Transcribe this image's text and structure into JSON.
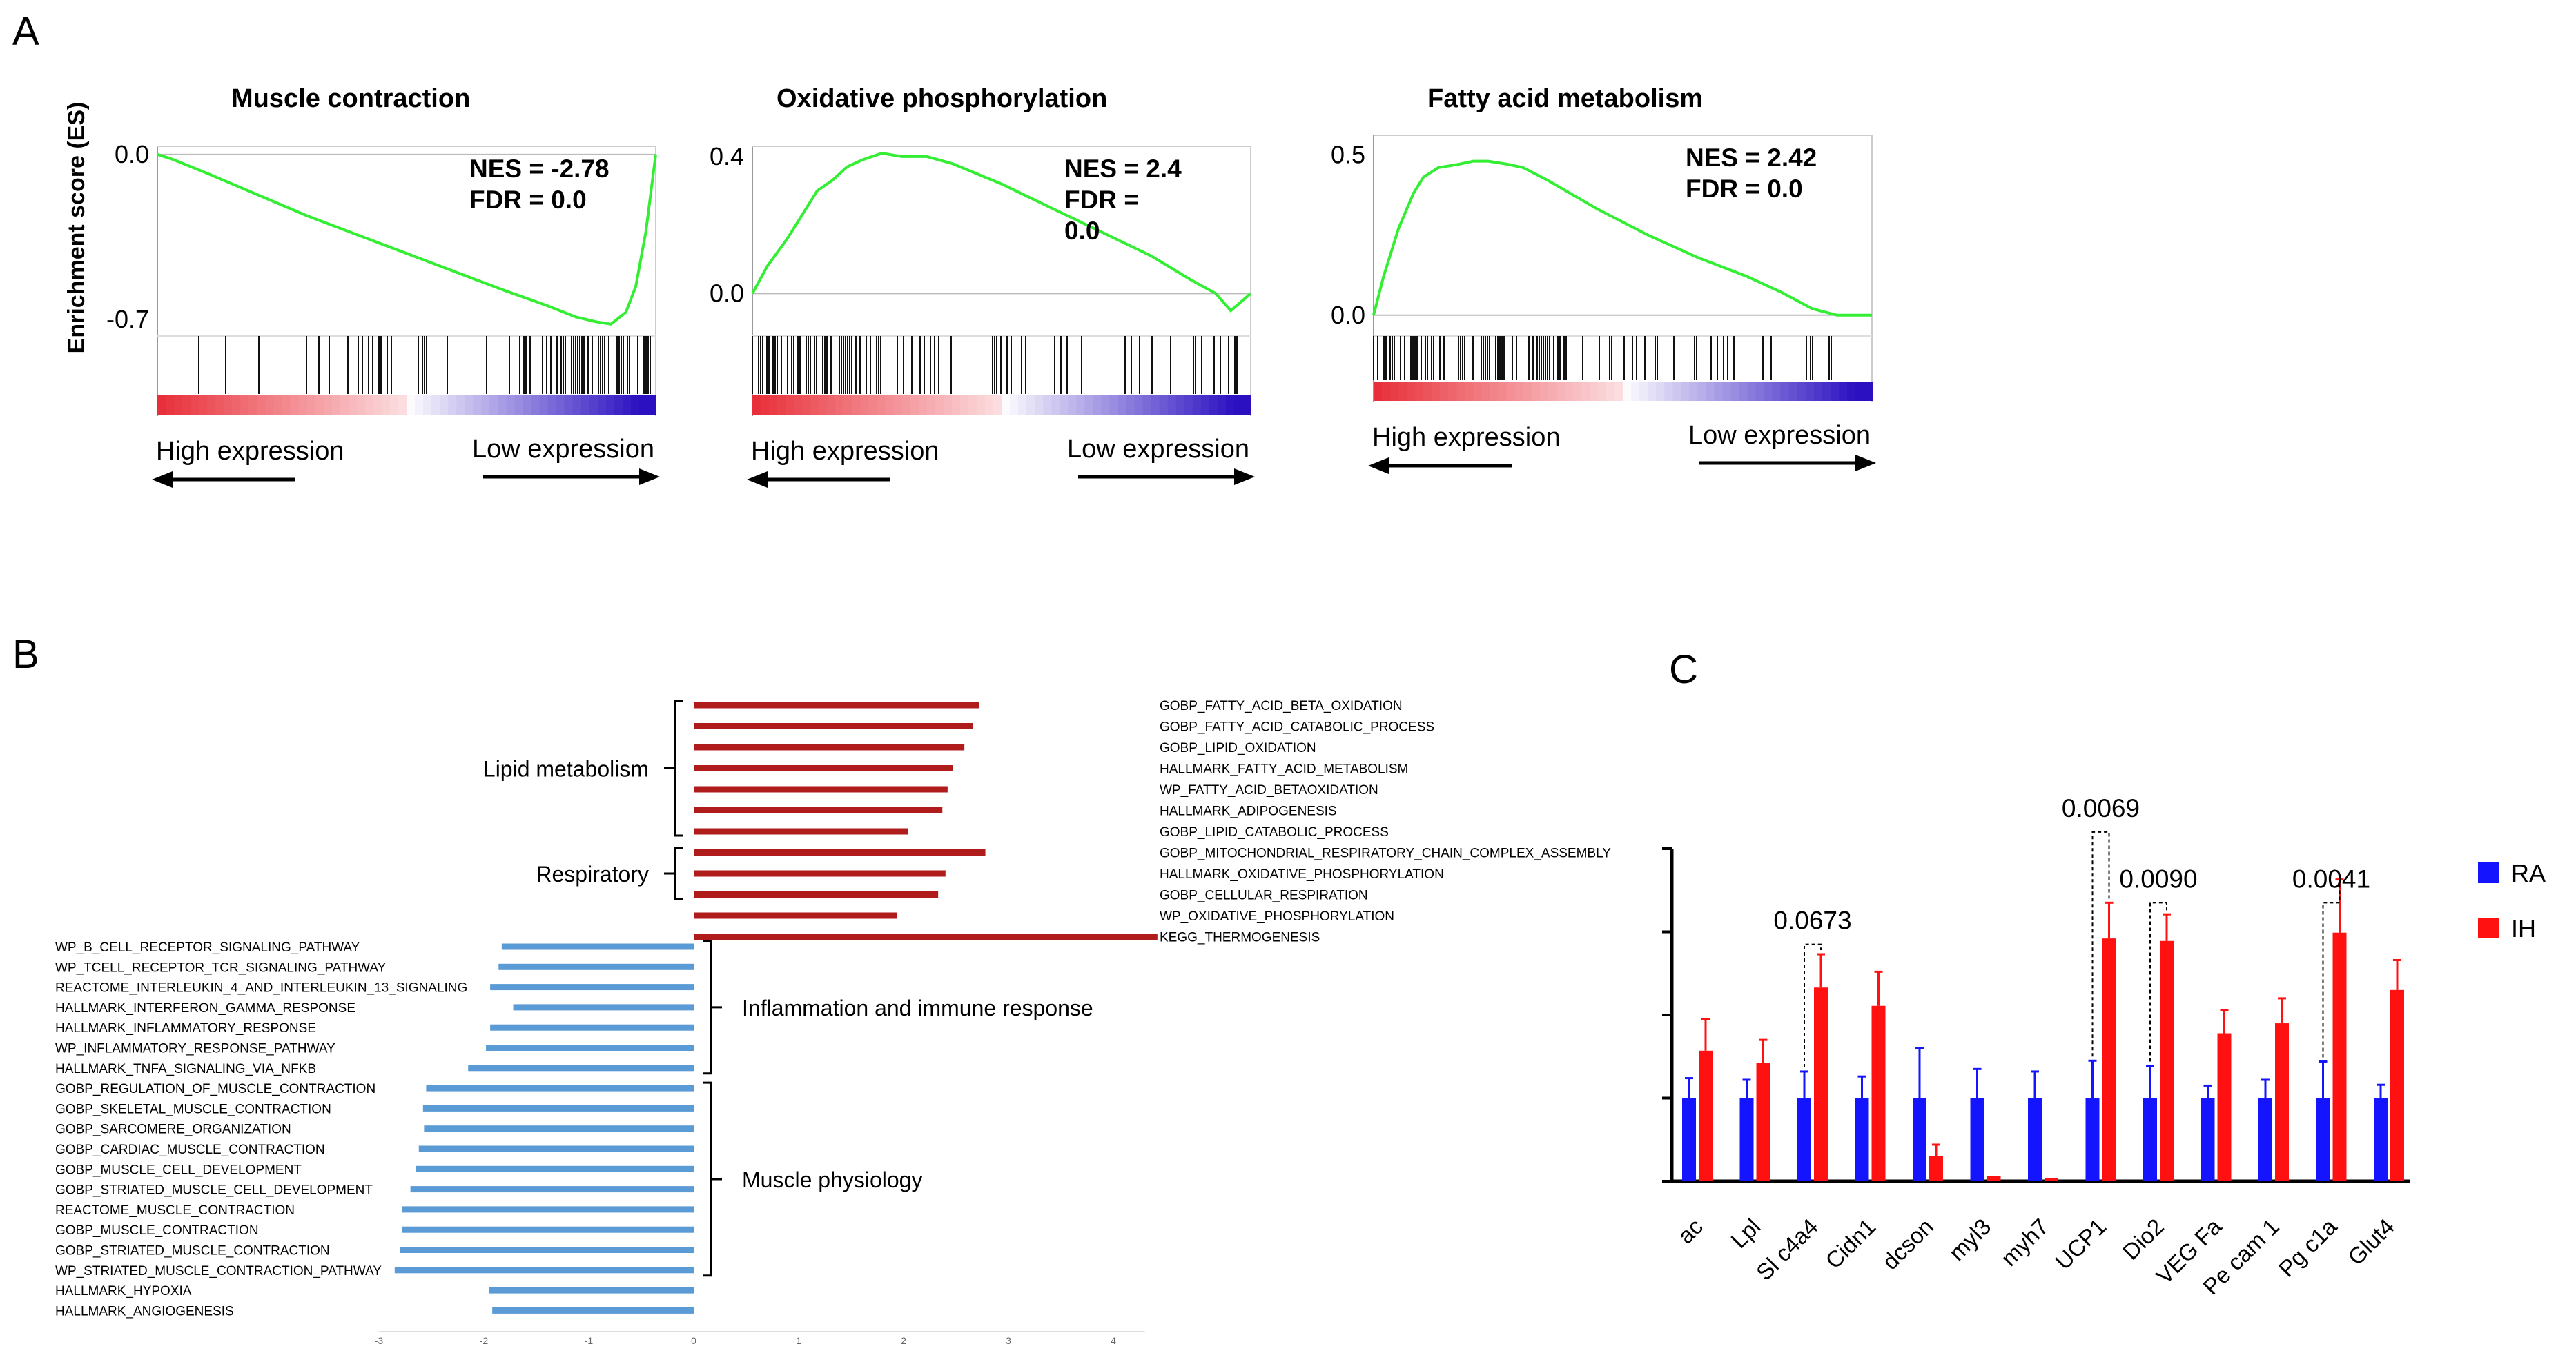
{
  "panel_letters": {
    "a": "A",
    "b": "B",
    "c": "C"
  },
  "colors": {
    "es_curve": "#33ee33",
    "up_bar": "#b01c1c",
    "down_bar": "#5b9bd5",
    "ra": "#1414ff",
    "ih": "#ff1111",
    "rank_high": "#e8303a",
    "rank_low": "#2a10c0"
  },
  "chart_data": [
    {
      "type": "line",
      "panel": "A",
      "title": "Muscle contraction",
      "ylabel": "Enrichment score (ES)",
      "ytick_labels": [
        "0.0",
        "-0.7"
      ],
      "ylim": [
        -0.75,
        0.02
      ],
      "nes_label": "NES = -2.78",
      "fdr_label": "FDR = 0.0",
      "direction_labels": {
        "high": "High expression",
        "low": "Low expression"
      },
      "series": [
        {
          "x": [
            0,
            0.03,
            0.1,
            0.2,
            0.3,
            0.4,
            0.5,
            0.6,
            0.7,
            0.78,
            0.84,
            0.88,
            0.91,
            0.94,
            0.96,
            0.98,
            1.0
          ],
          "values": [
            0.0,
            -0.02,
            -0.08,
            -0.17,
            -0.26,
            -0.34,
            -0.42,
            -0.5,
            -0.58,
            -0.64,
            -0.69,
            -0.71,
            -0.72,
            -0.67,
            -0.56,
            -0.33,
            0.0
          ]
        }
      ],
      "hit_density": [
        0.1,
        0.2,
        0.35,
        0.55,
        0.9
      ]
    },
    {
      "type": "line",
      "panel": "A",
      "title": "Oxidative phosphorylation",
      "ylabel": "",
      "ytick_labels": [
        "0.4",
        "0.0"
      ],
      "ylim": [
        -0.11,
        0.42
      ],
      "nes_label": "NES = 2.4",
      "fdr_label": "FDR =",
      "fdr_value": "0.0",
      "direction_labels": {
        "high": "High expression",
        "low": "Low expression"
      },
      "series": [
        {
          "x": [
            0,
            0.03,
            0.07,
            0.1,
            0.13,
            0.16,
            0.19,
            0.22,
            0.26,
            0.3,
            0.35,
            0.4,
            0.5,
            0.6,
            0.7,
            0.8,
            0.88,
            0.93,
            0.96,
            1.0
          ],
          "values": [
            0.0,
            0.08,
            0.16,
            0.23,
            0.3,
            0.33,
            0.37,
            0.39,
            0.41,
            0.4,
            0.4,
            0.38,
            0.32,
            0.25,
            0.18,
            0.11,
            0.04,
            0.0,
            -0.05,
            0.0
          ]
        }
      ],
      "hit_density": [
        0.95,
        0.7,
        0.45,
        0.3,
        0.5
      ]
    },
    {
      "type": "line",
      "panel": "A",
      "title": "Fatty acid metabolism",
      "ylabel": "",
      "ytick_labels": [
        "0.5",
        "0.0"
      ],
      "ylim": [
        -0.05,
        0.55
      ],
      "nes_label": "NES = 2.42",
      "fdr_label": "FDR = 0.0",
      "direction_labels": {
        "high": "High expression",
        "low": "Low expression"
      },
      "series": [
        {
          "x": [
            0,
            0.02,
            0.05,
            0.08,
            0.1,
            0.13,
            0.17,
            0.2,
            0.23,
            0.27,
            0.3,
            0.35,
            0.45,
            0.55,
            0.65,
            0.75,
            0.82,
            0.88,
            0.93,
            1.0
          ],
          "values": [
            0.0,
            0.12,
            0.27,
            0.38,
            0.43,
            0.46,
            0.47,
            0.48,
            0.48,
            0.47,
            0.46,
            0.42,
            0.33,
            0.25,
            0.18,
            0.12,
            0.07,
            0.02,
            0.0,
            0.0
          ]
        }
      ],
      "hit_density": [
        0.95,
        0.75,
        0.45,
        0.3,
        0.25
      ]
    },
    {
      "type": "bar",
      "panel": "B",
      "orientation": "horizontal",
      "xlim": [
        -3,
        4.5
      ],
      "xticks": [
        "-3",
        "-2",
        "-1",
        "0",
        "1",
        "2",
        "3",
        "4"
      ],
      "up_categories": [
        "GOBP_FATTY_ACID_BETA_OXIDATION",
        "GOBP_FATTY_ACID_CATABOLIC_PROCESS",
        "GOBP_LIPID_OXIDATION",
        "HALLMARK_FATTY_ACID_METABOLISM",
        "WP_FATTY_ACID_BETAOXIDATION",
        "HALLMARK_ADIPOGENESIS",
        "GOBP_LIPID_CATABOLIC_PROCESS",
        "GOBP_MITOCHONDRIAL_RESPIRATORY_CHAIN_COMPLEX_ASSEMBLY",
        "HALLMARK_OXIDATIVE_PHOSPHORYLATION",
        "GOBP_CELLULAR_RESPIRATION",
        "WP_OXIDATIVE_PHOSPHORYLATION",
        "KEGG_THERMOGENESIS"
      ],
      "up_values": [
        2.72,
        2.66,
        2.58,
        2.47,
        2.42,
        2.37,
        2.04,
        2.78,
        2.4,
        2.33,
        1.94,
        4.42
      ],
      "down_categories": [
        "WP_B_CELL_RECEPTOR_SIGNALING_PATHWAY",
        "WP_TCELL_RECEPTOR_TCR_SIGNALING_PATHWAY",
        "REACTOME_INTERLEUKIN_4_AND_INTERLEUKIN_13_SIGNALING",
        "HALLMARK_INTERFERON_GAMMA_RESPONSE",
        "HALLMARK_INFLAMMATORY_RESPONSE",
        "WP_INFLAMMATORY_RESPONSE_PATHWAY",
        "HALLMARK_TNFA_SIGNALING_VIA_NFKB",
        "GOBP_REGULATION_OF_MUSCLE_CONTRACTION",
        "GOBP_SKELETAL_MUSCLE_CONTRACTION",
        "GOBP_SARCOMERE_ORGANIZATION",
        "GOBP_CARDIAC_MUSCLE_CONTRACTION",
        "GOBP_MUSCLE_CELL_DEVELOPMENT",
        "GOBP_STRIATED_MUSCLE_CELL_DEVELOPMENT",
        "REACTOME_MUSCLE_CONTRACTION",
        "GOBP_MUSCLE_CONTRACTION",
        "GOBP_STRIATED_MUSCLE_CONTRACTION",
        "WP_STRIATED_MUSCLE_CONTRACTION_PATHWAY",
        "HALLMARK_HYPOXIA",
        "HALLMARK_ANGIOGENESIS"
      ],
      "down_values": [
        -1.83,
        -1.86,
        -1.94,
        -1.72,
        -1.94,
        -1.98,
        -2.15,
        -2.55,
        -2.58,
        -2.57,
        -2.62,
        -2.65,
        -2.7,
        -2.78,
        -2.78,
        -2.8,
        -2.85,
        -1.95,
        -1.92
      ],
      "groups": [
        {
          "label": "Lipid metabolism",
          "side": "up",
          "first": 0,
          "last": 6
        },
        {
          "label": "Respiratory",
          "side": "up",
          "first": 7,
          "last": 9
        },
        {
          "label": "Inflammation and immune response",
          "side": "down",
          "first": 0,
          "last": 6
        },
        {
          "label": "Muscle physiology",
          "side": "down",
          "first": 7,
          "last": 16
        }
      ]
    },
    {
      "type": "bar",
      "panel": "C",
      "categories": [
        "ac",
        "Lpl",
        "Sl c4a4",
        "Cidn1",
        "dcson",
        "myl3",
        "myh7",
        "UCP1",
        "Dio2",
        "VEG Fa",
        "Pe cam 1",
        "Pg c1a",
        "Glut4"
      ],
      "ylim": [
        0,
        4
      ],
      "yticks_count": 5,
      "legend": [
        "RA",
        "IH"
      ],
      "legend_position": "right",
      "series": [
        {
          "name": "RA",
          "values": [
            1.0,
            1.0,
            1.0,
            1.0,
            1.0,
            1.0,
            1.0,
            1.0,
            1.0,
            1.0,
            1.0,
            1.0,
            1.0
          ],
          "errors": [
            0.24,
            0.22,
            0.32,
            0.26,
            0.6,
            0.35,
            0.32,
            0.45,
            0.39,
            0.15,
            0.22,
            0.44,
            0.16
          ]
        },
        {
          "name": "IH",
          "values": [
            1.57,
            1.42,
            2.33,
            2.11,
            0.3,
            0.06,
            0.04,
            2.92,
            2.89,
            1.78,
            1.9,
            2.99,
            2.3
          ],
          "errors": [
            0.38,
            0.28,
            0.4,
            0.41,
            0.14,
            0.0,
            0.0,
            0.43,
            0.32,
            0.28,
            0.3,
            0.64,
            0.36
          ]
        }
      ],
      "annotations": [
        {
          "index": 2,
          "text": "0.0673",
          "y": 3.1
        },
        {
          "index": 7,
          "text": "0.0069",
          "y": 4.45
        },
        {
          "index": 8,
          "text": "0.0090",
          "y": 3.6
        },
        {
          "index": 11,
          "text": "0.0041",
          "y": 3.6
        }
      ]
    }
  ]
}
